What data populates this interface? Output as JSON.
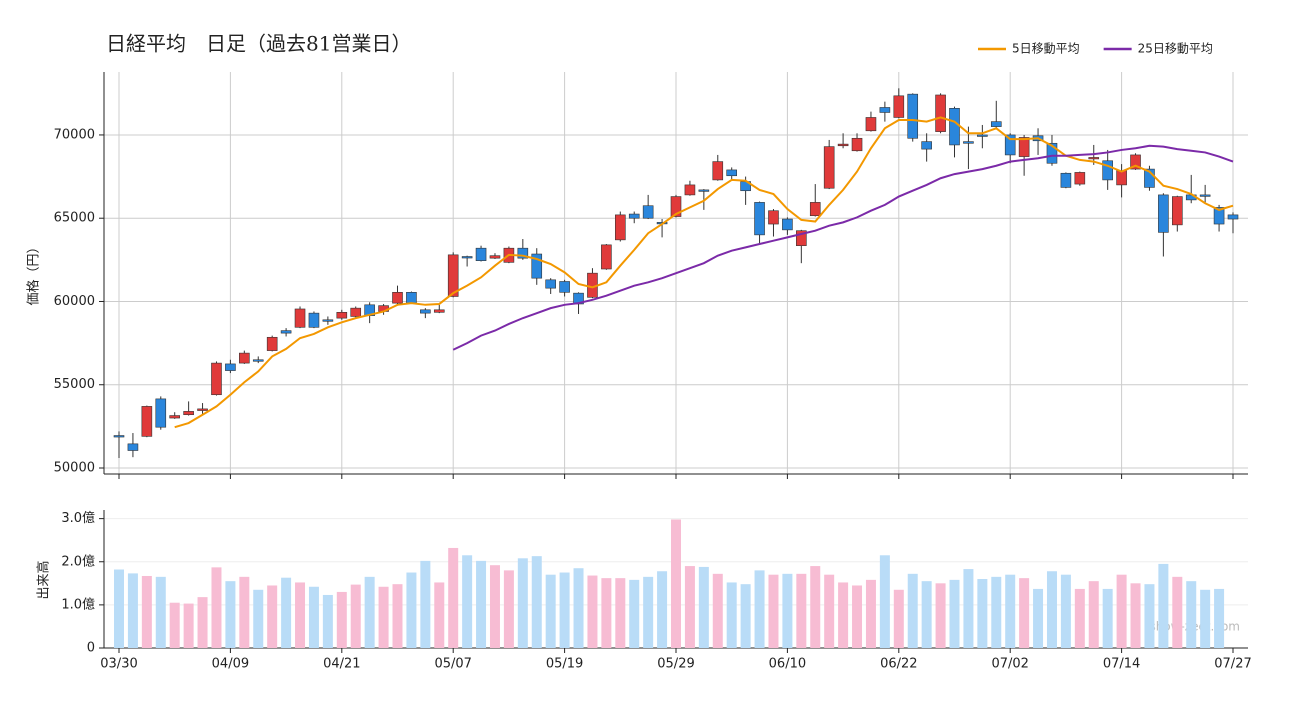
{
  "chart_data": [
    {
      "type": "candlestick",
      "title": "日経平均　日足（過去81営業日）",
      "y_label": "価格（円）",
      "categories": [
        "03/30",
        null,
        null,
        null,
        null,
        null,
        null,
        null,
        "04/09",
        null,
        null,
        null,
        null,
        null,
        null,
        null,
        "04/21",
        null,
        null,
        null,
        null,
        null,
        null,
        null,
        "05/07",
        null,
        null,
        null,
        null,
        null,
        null,
        null,
        "05/19",
        null,
        null,
        null,
        null,
        null,
        null,
        null,
        "05/29",
        null,
        null,
        null,
        null,
        null,
        null,
        null,
        "06/10",
        null,
        null,
        null,
        null,
        null,
        null,
        null,
        "06/22",
        null,
        null,
        null,
        null,
        null,
        null,
        null,
        "07/02",
        null,
        null,
        null,
        null,
        null,
        null,
        null,
        "07/14",
        null,
        null,
        null,
        null,
        null,
        null,
        null,
        "07/27"
      ],
      "open": [
        51950,
        51450,
        51900,
        54150,
        53000,
        53200,
        53450,
        54400,
        56250,
        56300,
        56500,
        57050,
        58250,
        58450,
        59300,
        58900,
        59000,
        59100,
        59800,
        59400,
        59900,
        60550,
        59500,
        59350,
        60300,
        62700,
        63200,
        62600,
        62350,
        63200,
        62850,
        61300,
        61200,
        60500,
        60250,
        61950,
        63700,
        65250,
        65750,
        64750,
        65100,
        66400,
        66700,
        67300,
        67900,
        67200,
        65950,
        64650,
        64950,
        63350,
        65150,
        66800,
        69350,
        69050,
        70250,
        71650,
        71050,
        72450,
        69600,
        70200,
        71600,
        69600,
        70000,
        70800,
        70000,
        68700,
        69950,
        69500,
        67700,
        67050,
        68600,
        68450,
        67000,
        67950,
        67950,
        66400,
        64600,
        66400,
        66400,
        65650,
        65200
      ],
      "high": [
        52200,
        52100,
        53750,
        54300,
        53350,
        54000,
        53900,
        56400,
        56500,
        57050,
        56700,
        57950,
        58400,
        59700,
        59400,
        59100,
        59500,
        59700,
        59950,
        59850,
        60950,
        60600,
        59600,
        59800,
        62950,
        62750,
        63350,
        62900,
        63300,
        63750,
        63200,
        61400,
        61300,
        60550,
        62000,
        63450,
        65400,
        65400,
        66400,
        64950,
        66400,
        67250,
        66750,
        68800,
        68050,
        67500,
        66000,
        65550,
        65050,
        64300,
        67050,
        69700,
        70100,
        70100,
        71400,
        72000,
        72800,
        72500,
        70100,
        72500,
        71700,
        70500,
        70600,
        72050,
        70100,
        70000,
        70400,
        70000,
        67750,
        67800,
        69400,
        69100,
        68250,
        68900,
        68150,
        66500,
        66350,
        67600,
        67000,
        65800,
        65350
      ],
      "low": [
        50600,
        50650,
        51850,
        52300,
        52950,
        53150,
        53200,
        54350,
        55700,
        56250,
        56300,
        57000,
        57900,
        58400,
        58400,
        58600,
        58900,
        58950,
        58700,
        59200,
        59850,
        59850,
        59000,
        59300,
        60250,
        62100,
        62400,
        62550,
        62300,
        62500,
        61000,
        60450,
        60300,
        59250,
        60200,
        61900,
        63600,
        64700,
        64950,
        63850,
        65050,
        66350,
        65500,
        67250,
        67250,
        65800,
        63500,
        63900,
        64000,
        62300,
        65100,
        66750,
        69200,
        69000,
        70200,
        70800,
        71000,
        69600,
        68400,
        70100,
        68650,
        67950,
        69200,
        70400,
        68300,
        67550,
        68800,
        68150,
        66800,
        66950,
        68200,
        66700,
        66250,
        67900,
        66650,
        62700,
        64200,
        65900,
        65900,
        64200,
        64100
      ],
      "close": [
        51900,
        51050,
        53700,
        52450,
        53150,
        53400,
        53550,
        56300,
        55850,
        56900,
        56450,
        57850,
        58100,
        59550,
        58450,
        58850,
        59350,
        59600,
        59150,
        59750,
        60550,
        59900,
        59300,
        59500,
        62800,
        62650,
        62450,
        62750,
        63200,
        62600,
        61400,
        60800,
        60550,
        59850,
        61700,
        63400,
        65200,
        65000,
        65000,
        64700,
        66300,
        67000,
        66650,
        68400,
        67550,
        66650,
        64000,
        65450,
        64300,
        64250,
        65950,
        69300,
        69450,
        69800,
        71050,
        71350,
        72350,
        69800,
        69150,
        72400,
        69400,
        69500,
        69950,
        70500,
        68800,
        69850,
        69650,
        68300,
        66850,
        67750,
        68650,
        67300,
        67850,
        68800,
        66850,
        64150,
        66300,
        66100,
        66350,
        64650,
        64950
      ],
      "up_color": "#e03a3a",
      "down_color": "#2a86dc",
      "series": [
        {
          "name": "5日移動平均",
          "color": "#f39800",
          "values": [
            null,
            null,
            null,
            null,
            52450,
            52700,
            53200,
            53700,
            54400,
            55150,
            55800,
            56700,
            57150,
            57800,
            58050,
            58450,
            58750,
            59000,
            59200,
            59400,
            59800,
            59900,
            59800,
            59850,
            60500,
            60950,
            61450,
            62150,
            62800,
            62750,
            62550,
            62250,
            61750,
            61050,
            60850,
            61150,
            62150,
            63100,
            64100,
            64650,
            65250,
            65650,
            66050,
            66750,
            67300,
            67250,
            66700,
            66450,
            65550,
            64900,
            64800,
            65800,
            66700,
            67800,
            69200,
            70400,
            70900,
            70900,
            70800,
            71050,
            70800,
            70100,
            70100,
            70400,
            69750,
            69750,
            69800,
            69350,
            68750,
            68500,
            68400,
            68150,
            67800,
            68150,
            67800,
            66950,
            66750,
            66450,
            65900,
            65500,
            65750
          ]
        },
        {
          "name": "25日移動平均",
          "color": "#7b2aa8",
          "values": [
            null,
            null,
            null,
            null,
            null,
            null,
            null,
            null,
            null,
            null,
            null,
            null,
            null,
            null,
            null,
            null,
            null,
            null,
            null,
            null,
            null,
            null,
            null,
            null,
            57100,
            57500,
            57950,
            58250,
            58650,
            59000,
            59300,
            59600,
            59800,
            59900,
            60100,
            60350,
            60650,
            60950,
            61150,
            61400,
            61700,
            62000,
            62300,
            62750,
            63050,
            63250,
            63450,
            63650,
            63850,
            64050,
            64250,
            64550,
            64750,
            65050,
            65450,
            65800,
            66300,
            66650,
            67000,
            67400,
            67650,
            67800,
            67950,
            68150,
            68400,
            68500,
            68600,
            68750,
            68750,
            68800,
            68850,
            68950,
            69100,
            69200,
            69350,
            69300,
            69150,
            69050,
            68950,
            68700,
            68400
          ]
        }
      ],
      "ylim": [
        49640,
        73780
      ],
      "yticks": [
        50000,
        55000,
        60000,
        65000,
        70000
      ],
      "grid": true,
      "legend": "upper right"
    },
    {
      "type": "bar",
      "y_label": "出来高",
      "watermark": "show-zeet.com",
      "categories": [
        "03/30",
        null,
        null,
        null,
        null,
        null,
        null,
        null,
        "04/09",
        null,
        null,
        null,
        null,
        null,
        null,
        null,
        "04/21",
        null,
        null,
        null,
        null,
        null,
        null,
        null,
        "05/07",
        null,
        null,
        null,
        null,
        null,
        null,
        null,
        "05/19",
        null,
        null,
        null,
        null,
        null,
        null,
        null,
        "05/29",
        null,
        null,
        null,
        null,
        null,
        null,
        null,
        "06/10",
        null,
        null,
        null,
        null,
        null,
        null,
        null,
        "06/22",
        null,
        null,
        null,
        null,
        null,
        null,
        null,
        "07/02",
        null,
        null,
        null,
        null,
        null,
        null,
        null,
        "07/14",
        null,
        null,
        null,
        null,
        null,
        null,
        null,
        "07/27"
      ],
      "values": [
        1.82,
        1.73,
        1.67,
        1.65,
        1.05,
        1.03,
        1.18,
        1.87,
        1.55,
        1.65,
        1.35,
        1.45,
        1.63,
        1.52,
        1.42,
        1.23,
        1.3,
        1.47,
        1.65,
        1.42,
        1.48,
        1.75,
        2.02,
        1.52,
        2.32,
        2.15,
        2.02,
        1.92,
        1.8,
        2.08,
        2.13,
        1.7,
        1.75,
        1.85,
        1.68,
        1.62,
        1.62,
        1.58,
        1.65,
        1.78,
        2.98,
        1.9,
        1.88,
        1.72,
        1.52,
        1.48,
        1.8,
        1.7,
        1.72,
        1.72,
        1.9,
        1.7,
        1.52,
        1.45,
        1.58,
        2.15,
        1.35,
        1.72,
        1.55,
        1.5,
        1.58,
        1.83,
        1.6,
        1.65,
        1.7,
        1.62,
        1.37,
        1.78,
        1.7,
        1.37,
        1.55,
        1.37,
        1.7,
        1.5,
        1.48,
        1.95,
        1.65,
        1.55,
        1.35,
        1.37,
        null
      ],
      "up_color": "#f7bcd3",
      "down_color": "#b9dcf7",
      "ylim": [
        0,
        3.2
      ],
      "yticks": [
        0,
        {
          "value": 1,
          "label": "1.0億"
        },
        {
          "value": 2,
          "label": "2.0億"
        },
        {
          "value": 3,
          "label": "3.0億"
        }
      ],
      "grid": true
    }
  ]
}
